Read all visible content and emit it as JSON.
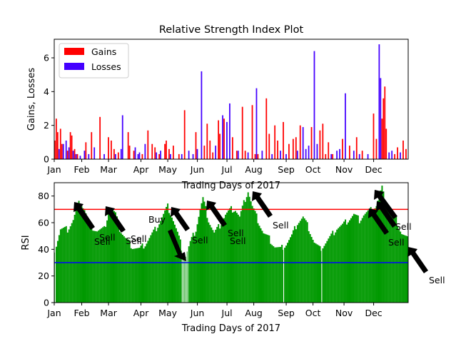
{
  "colors": {
    "gains": "#ff0000",
    "losses": "#4400ff",
    "rsi": "#009900",
    "overbought_line": "#ff0000",
    "oversold_line": "#0000ff",
    "arrow": "#000000"
  },
  "chart_data": [
    {
      "type": "bar",
      "title": "Relative Strength Index Plot",
      "xlabel": "Trading Days of 2017",
      "ylabel": "Gains, Losses",
      "xlim": [
        0,
        251
      ],
      "ylim": [
        0,
        7.1
      ],
      "y_ticks": [
        0,
        2,
        4,
        6
      ],
      "x_ticks": [
        {
          "label": "Jan",
          "day": 0
        },
        {
          "label": "Feb",
          "day": 19.5
        },
        {
          "label": "Mar",
          "day": 38.5
        },
        {
          "label": "Apr",
          "day": 61.5
        },
        {
          "label": "May",
          "day": 80.5
        },
        {
          "label": "Jun",
          "day": 101.5
        },
        {
          "label": "Jul",
          "day": 122.5
        },
        {
          "label": "Aug",
          "day": 141.5
        },
        {
          "label": "Sep",
          "day": 164.5
        },
        {
          "label": "Oct",
          "day": 183.5
        },
        {
          "label": "Nov",
          "day": 205.5
        },
        {
          "label": "Dec",
          "day": 226.5
        }
      ],
      "legend": {
        "position": "top-left",
        "entries": [
          "Gains",
          "Losses"
        ]
      },
      "grid": false,
      "series": [
        {
          "name": "Gains",
          "points": [
            [
              0,
              1.1
            ],
            [
              1,
              2.4
            ],
            [
              2,
              1.6
            ],
            [
              4,
              1.8
            ],
            [
              5,
              0.9
            ],
            [
              9,
              0.5
            ],
            [
              11,
              1.6
            ],
            [
              12,
              1.4
            ],
            [
              14,
              0.6
            ],
            [
              16,
              0.3
            ],
            [
              22,
              1.0
            ],
            [
              26,
              1.6
            ],
            [
              32,
              2.5
            ],
            [
              38,
              1.3
            ],
            [
              40,
              1.1
            ],
            [
              42,
              0.6
            ],
            [
              45,
              0.4
            ],
            [
              52,
              1.6
            ],
            [
              53,
              0.8
            ],
            [
              56,
              0.5
            ],
            [
              62,
              0.3
            ],
            [
              66,
              1.7
            ],
            [
              69,
              0.9
            ],
            [
              71,
              0.7
            ],
            [
              74,
              0.3
            ],
            [
              78,
              0.9
            ],
            [
              79,
              1.1
            ],
            [
              81,
              0.6
            ],
            [
              84,
              0.8
            ],
            [
              88,
              0.3
            ],
            [
              92,
              2.9
            ],
            [
              100,
              1.6
            ],
            [
              106,
              0.8
            ],
            [
              108,
              2.1
            ],
            [
              110,
              1.1
            ],
            [
              112,
              0.4
            ],
            [
              116,
              2.3
            ],
            [
              117,
              1.5
            ],
            [
              120,
              2.4
            ],
            [
              126,
              1.3
            ],
            [
              129,
              0.5
            ],
            [
              133,
              3.1
            ],
            [
              135,
              0.5
            ],
            [
              140,
              3.2
            ],
            [
              142,
              0.3
            ],
            [
              144,
              0.3
            ],
            [
              150,
              3.6
            ],
            [
              152,
              1.5
            ],
            [
              156,
              2.0
            ],
            [
              158,
              1.1
            ],
            [
              162,
              2.2
            ],
            [
              166,
              0.9
            ],
            [
              169,
              1.2
            ],
            [
              171,
              1.3
            ],
            [
              174,
              2.0
            ],
            [
              182,
              1.9
            ],
            [
              188,
              1.7
            ],
            [
              190,
              2.1
            ],
            [
              192,
              0.3
            ],
            [
              194,
              1.0
            ],
            [
              197,
              0.3
            ],
            [
              204,
              1.2
            ],
            [
              209,
              0.8
            ],
            [
              214,
              1.3
            ],
            [
              218,
              0.5
            ],
            [
              226,
              2.7
            ],
            [
              228,
              1.2
            ],
            [
              232,
              2.4
            ],
            [
              233,
              3.6
            ],
            [
              234,
              4.3
            ],
            [
              235,
              1.8
            ],
            [
              241,
              0.3
            ],
            [
              243,
              0.7
            ],
            [
              247,
              1.1
            ],
            [
              249,
              0.6
            ]
          ]
        },
        {
          "name": "Losses",
          "points": [
            [
              3,
              0.6
            ],
            [
              6,
              0.9
            ],
            [
              8,
              1.1
            ],
            [
              10,
              0.7
            ],
            [
              13,
              0.5
            ],
            [
              15,
              0.3
            ],
            [
              18,
              0.2
            ],
            [
              21,
              0.5
            ],
            [
              24,
              0.3
            ],
            [
              28,
              0.7
            ],
            [
              35,
              0.3
            ],
            [
              43,
              0.3
            ],
            [
              47,
              0.6
            ],
            [
              48,
              2.6
            ],
            [
              57,
              0.7
            ],
            [
              59,
              0.3
            ],
            [
              60,
              0.4
            ],
            [
              64,
              0.9
            ],
            [
              72,
              0.4
            ],
            [
              75,
              0.5
            ],
            [
              82,
              0.3
            ],
            [
              90,
              0.3
            ],
            [
              95,
              0.5
            ],
            [
              98,
              0.3
            ],
            [
              101,
              0.6
            ],
            [
              104,
              5.2
            ],
            [
              114,
              0.8
            ],
            [
              119,
              2.6
            ],
            [
              122,
              2.2
            ],
            [
              124,
              3.3
            ],
            [
              130,
              0.5
            ],
            [
              137,
              0.4
            ],
            [
              143,
              4.2
            ],
            [
              147,
              0.5
            ],
            [
              154,
              0.3
            ],
            [
              160,
              0.5
            ],
            [
              164,
              0.3
            ],
            [
              172,
              0.5
            ],
            [
              176,
              1.9
            ],
            [
              178,
              0.6
            ],
            [
              180,
              0.8
            ],
            [
              184,
              6.4
            ],
            [
              186,
              0.9
            ],
            [
              196,
              0.3
            ],
            [
              200,
              0.5
            ],
            [
              202,
              0.6
            ],
            [
              206,
              3.9
            ],
            [
              212,
              0.5
            ],
            [
              216,
              0.3
            ],
            [
              222,
              0.3
            ],
            [
              230,
              6.8
            ],
            [
              231,
              4.8
            ],
            [
              237,
              0.4
            ],
            [
              239,
              0.5
            ],
            [
              245,
              0.4
            ]
          ]
        }
      ]
    },
    {
      "type": "bar",
      "title": "",
      "xlabel": "Trading Days of 2017",
      "ylabel": "RSI",
      "xlim": [
        0,
        251
      ],
      "ylim": [
        0,
        90
      ],
      "y_ticks": [
        0,
        20,
        40,
        60,
        80
      ],
      "x_ticks": [
        "Jan",
        "Feb",
        "Mar",
        "Apr",
        "May",
        "Jun",
        "Jul",
        "Aug",
        "Sep",
        "Oct",
        "Nov",
        "Dec"
      ],
      "overbought": 70,
      "oversold": 30,
      "grid": false,
      "series": [
        {
          "name": "RSI",
          "control_points": [
            [
              0,
              40
            ],
            [
              4,
              55
            ],
            [
              9,
              55
            ],
            [
              13,
              62
            ],
            [
              16,
              72
            ],
            [
              18,
              76
            ],
            [
              21,
              70
            ],
            [
              25,
              58
            ],
            [
              30,
              54
            ],
            [
              35,
              55
            ],
            [
              39,
              72
            ],
            [
              43,
              66
            ],
            [
              46,
              55
            ],
            [
              50,
              48
            ],
            [
              55,
              42
            ],
            [
              60,
              40
            ],
            [
              64,
              44
            ],
            [
              68,
              50
            ],
            [
              72,
              56
            ],
            [
              76,
              64
            ],
            [
              80,
              72
            ],
            [
              83,
              65
            ],
            [
              87,
              52
            ],
            [
              91,
              38
            ],
            [
              93,
              35
            ],
            [
              96,
              45
            ],
            [
              100,
              55
            ],
            [
              103,
              70
            ],
            [
              105,
              78
            ],
            [
              109,
              62
            ],
            [
              113,
              52
            ],
            [
              117,
              58
            ],
            [
              121,
              66
            ],
            [
              125,
              70
            ],
            [
              128,
              70
            ],
            [
              131,
              64
            ],
            [
              135,
              78
            ],
            [
              137,
              84
            ],
            [
              140,
              72
            ],
            [
              144,
              62
            ],
            [
              148,
              52
            ],
            [
              152,
              48
            ],
            [
              156,
              42
            ],
            [
              160,
              40
            ],
            [
              164,
              44
            ],
            [
              168,
              50
            ],
            [
              172,
              60
            ],
            [
              176,
              64
            ],
            [
              180,
              56
            ],
            [
              184,
              45
            ],
            [
              188,
              40
            ],
            [
              192,
              45
            ],
            [
              196,
              50
            ],
            [
              200,
              56
            ],
            [
              204,
              58
            ],
            [
              208,
              62
            ],
            [
              212,
              66
            ],
            [
              216,
              62
            ],
            [
              219,
              66
            ],
            [
              222,
              68
            ],
            [
              225,
              70
            ],
            [
              228,
              73
            ],
            [
              230,
              80
            ],
            [
              232,
              86
            ],
            [
              234,
              76
            ],
            [
              238,
              68
            ],
            [
              242,
              62
            ],
            [
              246,
              52
            ],
            [
              250,
              48
            ]
          ]
        }
      ],
      "annotations": [
        "Sell",
        "Sell",
        "Sell",
        "Sell",
        "Buy",
        "Sell",
        "Sell",
        "Sell",
        "Sell",
        "Sell",
        "Sell",
        "Sell"
      ]
    }
  ]
}
